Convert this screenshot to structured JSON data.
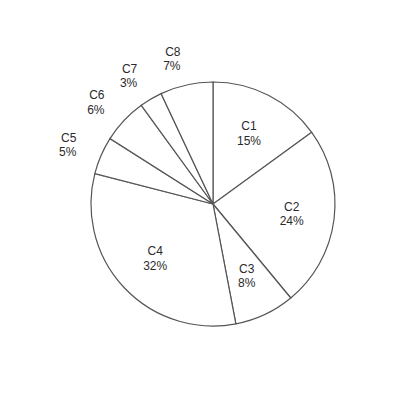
{
  "chart_data": {
    "type": "pie",
    "categories": [
      "C1",
      "C2",
      "C3",
      "C4",
      "C5",
      "C6",
      "C7",
      "C8"
    ],
    "values": [
      15,
      24,
      8,
      32,
      5,
      6,
      3,
      7
    ],
    "value_labels": [
      "15%",
      "24%",
      "8%",
      "32%",
      "5%",
      "6%",
      "3%",
      "7%"
    ],
    "color": "white",
    "data_labels": true
  }
}
